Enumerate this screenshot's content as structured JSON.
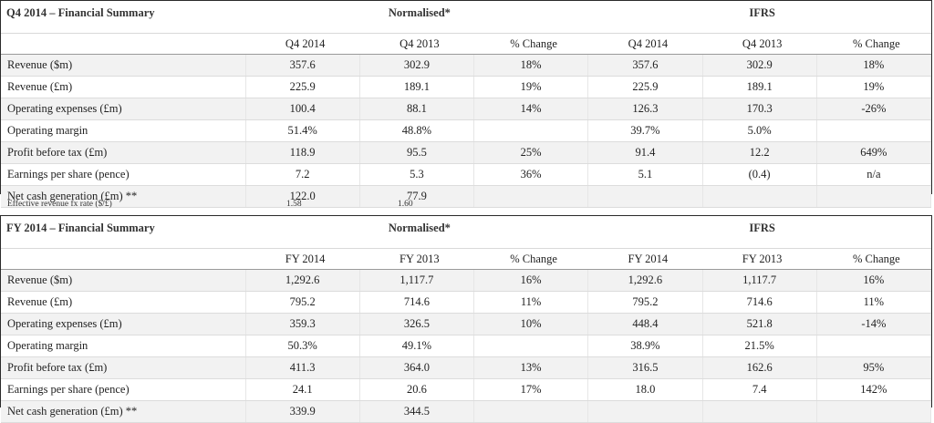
{
  "q4": {
    "title": "Q4 2014 – Financial Summary",
    "group_normalised": "Normalised*",
    "group_ifrs": "IFRS",
    "columns": [
      "Q4 2014",
      "Q4 2013",
      "% Change",
      "Q4 2014",
      "Q4 2013",
      "% Change"
    ],
    "rows": [
      {
        "label": "Revenue ($m)",
        "values": [
          "357.6",
          "302.9",
          "18%",
          "357.6",
          "302.9",
          "18%"
        ]
      },
      {
        "label": "Revenue (£m)",
        "values": [
          "225.9",
          "189.1",
          "19%",
          "225.9",
          "189.1",
          "19%"
        ]
      },
      {
        "label": "Operating expenses (£m)",
        "values": [
          "100.4",
          "88.1",
          "14%",
          "126.3",
          "170.3",
          "-26%"
        ]
      },
      {
        "label": "Operating margin",
        "values": [
          "51.4%",
          "48.8%",
          "",
          "39.7%",
          "5.0%",
          ""
        ]
      },
      {
        "label": "Profit before tax (£m)",
        "values": [
          "118.9",
          "95.5",
          "25%",
          "91.4",
          "12.2",
          "649%"
        ]
      },
      {
        "label": "Earnings per share (pence)",
        "values": [
          "7.2",
          "5.3",
          "36%",
          "5.1",
          "(0.4)",
          "n/a"
        ]
      },
      {
        "label": "Net cash generation (£m) **",
        "values": [
          "122.0",
          "77.9",
          "",
          "",
          "",
          ""
        ]
      }
    ]
  },
  "fx": {
    "label": "Effective revenue fx rate ($/£)",
    "q4_2014": "1.58",
    "q4_2013": "1.60"
  },
  "fy": {
    "title": "FY 2014 – Financial Summary",
    "group_normalised": "Normalised*",
    "group_ifrs": "IFRS",
    "columns": [
      "FY 2014",
      "FY 2013",
      "% Change",
      "FY 2014",
      "FY 2013",
      "% Change"
    ],
    "rows": [
      {
        "label": "Revenue ($m)",
        "values": [
          "1,292.6",
          "1,117.7",
          "16%",
          "1,292.6",
          "1,117.7",
          "16%"
        ]
      },
      {
        "label": "Revenue (£m)",
        "values": [
          "795.2",
          "714.6",
          "11%",
          "795.2",
          "714.6",
          "11%"
        ]
      },
      {
        "label": "Operating expenses (£m)",
        "values": [
          "359.3",
          "326.5",
          "10%",
          "448.4",
          "521.8",
          "-14%"
        ]
      },
      {
        "label": "Operating margin",
        "values": [
          "50.3%",
          "49.1%",
          "",
          "38.9%",
          "21.5%",
          ""
        ]
      },
      {
        "label": "Profit before tax (£m)",
        "values": [
          "411.3",
          "364.0",
          "13%",
          "316.5",
          "162.6",
          "95%"
        ]
      },
      {
        "label": "Earnings per share (pence)",
        "values": [
          "24.1",
          "20.6",
          "17%",
          "18.0",
          "7.4",
          "142%"
        ]
      },
      {
        "label": "Net cash generation (£m) **",
        "values": [
          "339.9",
          "344.5",
          "",
          "",
          "",
          ""
        ]
      }
    ]
  }
}
